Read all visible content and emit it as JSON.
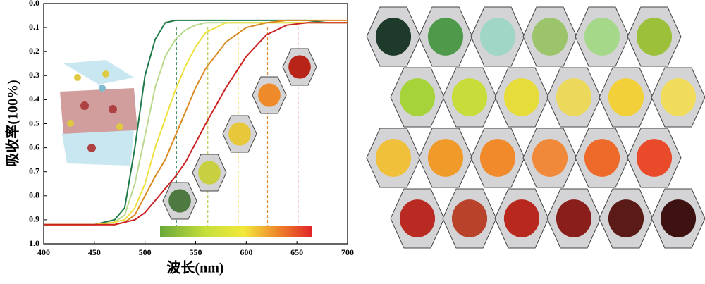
{
  "chart_data": {
    "type": "line",
    "x_label": "波长(nm)",
    "y_label": "吸收率(100%)",
    "xlim": [
      400,
      700
    ],
    "xticks": [
      400,
      450,
      500,
      550,
      600,
      650,
      700
    ],
    "ylim": [
      0,
      1
    ],
    "y_inverted": true,
    "yticks": [
      {
        "value": 0,
        "label": "0.0"
      },
      0.1,
      0.2,
      0.3,
      0.4,
      0.5,
      0.6,
      0.7,
      0.8,
      0.9,
      {
        "value": 1,
        "label": "1.0"
      }
    ],
    "x": [
      400,
      425,
      450,
      470,
      480,
      490,
      500,
      510,
      520,
      530,
      540,
      550,
      560,
      580,
      600,
      620,
      640,
      660,
      680,
      700
    ],
    "series": [
      {
        "name": "green",
        "color": "#1f7a4a",
        "values": [
          0.92,
          0.92,
          0.92,
          0.9,
          0.85,
          0.6,
          0.3,
          0.15,
          0.08,
          0.07,
          0.07,
          0.07,
          0.07,
          0.07,
          0.07,
          0.07,
          0.07,
          0.07,
          0.08,
          0.08
        ]
      },
      {
        "name": "light green",
        "color": "#b9d98c",
        "values": [
          0.92,
          0.92,
          0.92,
          0.91,
          0.88,
          0.75,
          0.55,
          0.35,
          0.22,
          0.15,
          0.11,
          0.09,
          0.08,
          0.08,
          0.08,
          0.08,
          0.08,
          0.08,
          0.08,
          0.08
        ]
      },
      {
        "name": "yellow",
        "color": "#efe03c",
        "values": [
          0.92,
          0.92,
          0.92,
          0.91,
          0.9,
          0.85,
          0.75,
          0.6,
          0.48,
          0.36,
          0.26,
          0.18,
          0.12,
          0.08,
          0.08,
          0.08,
          0.08,
          0.08,
          0.08,
          0.08
        ]
      },
      {
        "name": "orange",
        "color": "#d98a22",
        "values": [
          0.92,
          0.92,
          0.92,
          0.92,
          0.91,
          0.88,
          0.8,
          0.72,
          0.65,
          0.55,
          0.45,
          0.35,
          0.27,
          0.16,
          0.1,
          0.08,
          0.07,
          0.07,
          0.07,
          0.07
        ]
      },
      {
        "name": "red",
        "color": "#cc2222",
        "values": [
          0.92,
          0.92,
          0.92,
          0.92,
          0.91,
          0.9,
          0.87,
          0.82,
          0.77,
          0.72,
          0.66,
          0.58,
          0.5,
          0.35,
          0.22,
          0.13,
          0.09,
          0.08,
          0.08,
          0.08
        ]
      }
    ],
    "reference_lines": [
      531,
      562,
      592,
      621,
      651
    ],
    "reference_colors": [
      "#1f7a4a",
      "#b9c84c",
      "#e6d020",
      "#e08a30",
      "#cc2222"
    ]
  }
}
